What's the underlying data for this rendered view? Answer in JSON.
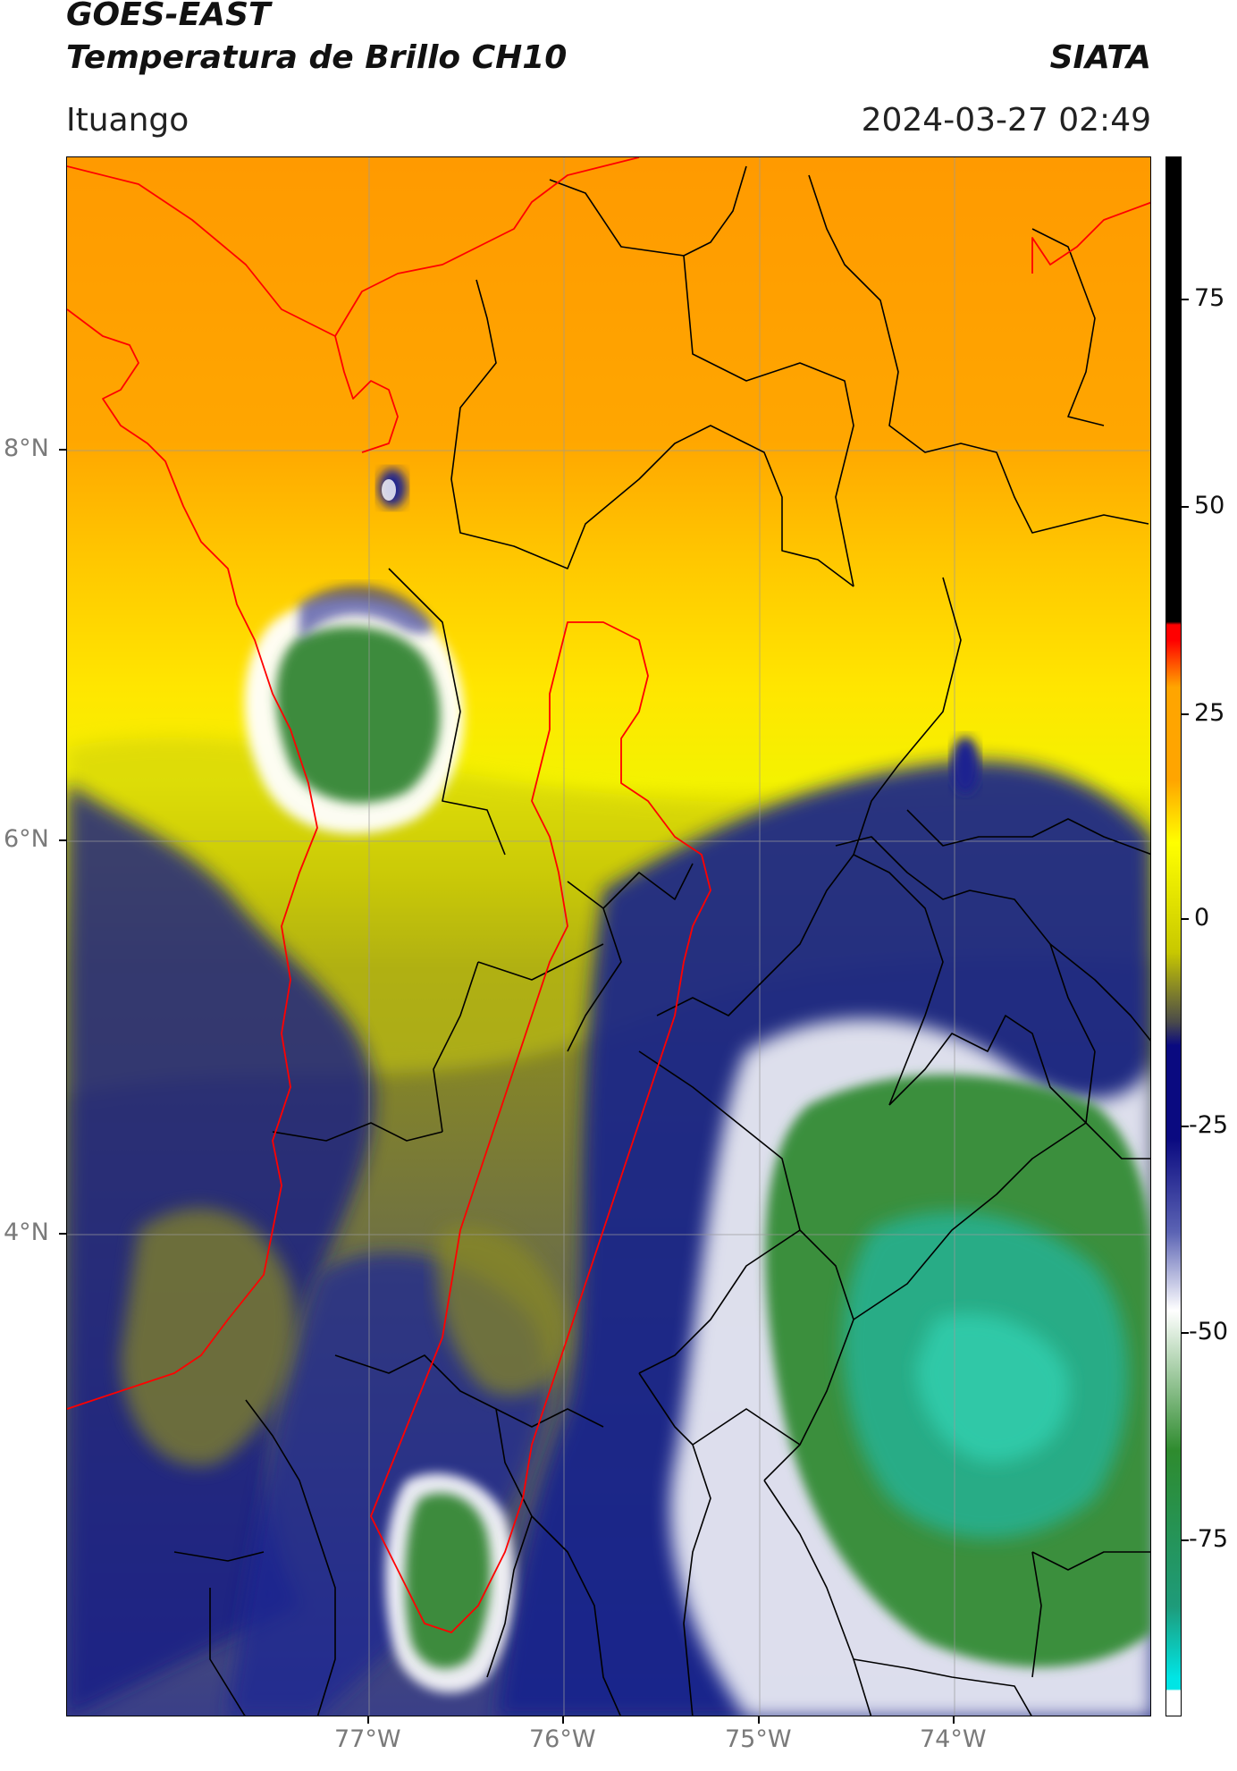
{
  "header": {
    "satellite": "GOES-EAST",
    "product": "Temperatura de Brillo CH10",
    "organization": "SIATA",
    "location": "Ituango",
    "timestamp": "2024-03-27 02:49"
  },
  "map": {
    "lat_labels": [
      "8°N",
      "6°N",
      "4°N"
    ],
    "lon_labels": [
      "77°W",
      "76°W",
      "75°W",
      "74°W"
    ]
  },
  "colorbar": {
    "tick_labels": [
      "75",
      "50",
      "25",
      "0",
      "-25",
      "-50",
      "-75"
    ],
    "stops": [
      "#ffffff",
      "#00e5e5",
      "#1e9b7a",
      "#2e8b2e",
      "#ffffff",
      "#5c64b4",
      "#0a0a80",
      "#4a4a4a",
      "#c8c800",
      "#ffff00",
      "#ffa500",
      "#ff0000",
      "#000000"
    ]
  }
}
